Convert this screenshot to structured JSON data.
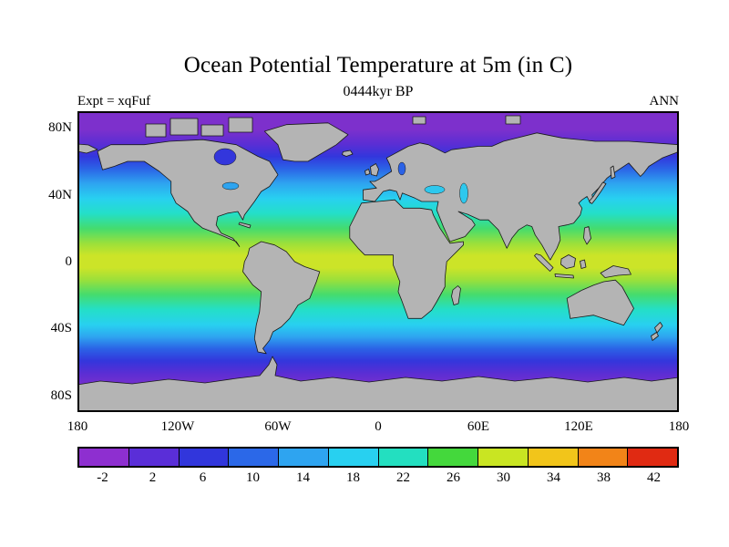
{
  "header": {
    "title": "Ocean Potential Temperature at 5m (in C)",
    "subtitle": "0444kyr BP",
    "experiment": "Expt = xqFuf",
    "season": "ANN"
  },
  "axes": {
    "lat_ticks": [
      {
        "label": "80N",
        "lat": 80
      },
      {
        "label": "40N",
        "lat": 40
      },
      {
        "label": "0",
        "lat": 0
      },
      {
        "label": "40S",
        "lat": -40
      },
      {
        "label": "80S",
        "lat": -80
      }
    ],
    "lon_ticks": [
      {
        "label": "180",
        "lon": -180
      },
      {
        "label": "120W",
        "lon": -120
      },
      {
        "label": "60W",
        "lon": -60
      },
      {
        "label": "0",
        "lon": 0
      },
      {
        "label": "60E",
        "lon": 60
      },
      {
        "label": "120E",
        "lon": 120
      },
      {
        "label": "180",
        "lon": 180
      }
    ]
  },
  "colorbar": {
    "tick_labels": [
      "-2",
      "2",
      "6",
      "10",
      "14",
      "18",
      "22",
      "26",
      "30",
      "34",
      "38",
      "42"
    ],
    "colors": [
      "#8e2fd0",
      "#5a2ed8",
      "#3136dc",
      "#2b68e8",
      "#2ea4f0",
      "#28d0f0",
      "#23dfc0",
      "#44d83c",
      "#c9e522",
      "#f2c51a",
      "#f28418",
      "#e02a12"
    ],
    "units": "C"
  },
  "map_colors": {
    "land": "#b4b4b4",
    "outline": "#1a1a1a",
    "inland_sea": "#2ec8ee",
    "frame": "#000000"
  },
  "chart_data": {
    "type": "heatmap",
    "title": "Ocean Potential Temperature at 5m (in C)",
    "subtitle": "0444kyr BP",
    "experiment": "xqFuf",
    "season": "ANN",
    "units": "deg C",
    "projection": "global lat-lon map, land masked gray",
    "lon_range": [
      -180,
      180
    ],
    "lat_range": [
      -90,
      90
    ],
    "colorbar_levels": [
      -2,
      2,
      6,
      10,
      14,
      18,
      22,
      26,
      30,
      34,
      38,
      42
    ],
    "zonal_mean_temperature": {
      "lat": [
        85,
        75,
        65,
        55,
        45,
        35,
        25,
        15,
        5,
        0,
        -5,
        -15,
        -25,
        -35,
        -45,
        -55,
        -65,
        -75
      ],
      "temp_c": [
        -1.5,
        -1,
        2,
        6,
        12,
        18,
        24,
        27,
        29,
        29,
        28,
        26,
        22,
        16,
        9,
        3,
        -1,
        -1.5
      ]
    },
    "notes": "Filled-contour global ocean temperature: purple (<0C) at poles, blue/cyan mid-latitudes, yellow-green (~28-30C) in tropics; continents gray."
  }
}
